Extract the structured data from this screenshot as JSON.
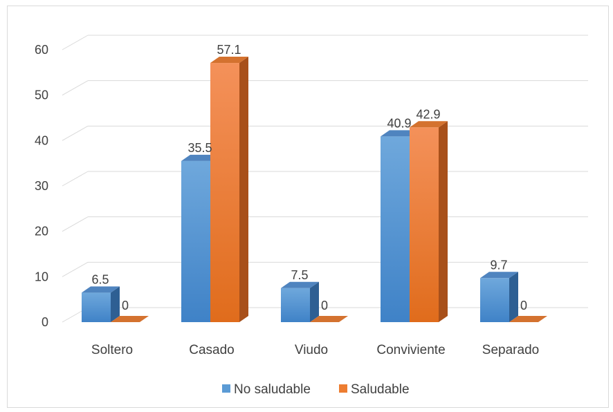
{
  "chart_data": {
    "type": "bar",
    "categories": [
      "Soltero",
      "Casado",
      "Viudo",
      "Conviviente",
      "Separado"
    ],
    "series": [
      {
        "name": "No saludable",
        "values": [
          6.5,
          35.5,
          7.5,
          40.9,
          9.7
        ],
        "color": "#5b9bd5"
      },
      {
        "name": "Saludable",
        "values": [
          0,
          57.1,
          0,
          42.9,
          0
        ],
        "color": "#ed7d31"
      }
    ],
    "data_labels": [
      [
        "6.5",
        "35.5",
        "7.5",
        "40.9",
        "9.7"
      ],
      [
        "0",
        "57.1",
        "0",
        "42.9",
        "0"
      ]
    ],
    "y_ticks": [
      "0",
      "10",
      "20",
      "30",
      "40",
      "50",
      "60"
    ],
    "ylim": [
      0,
      60
    ],
    "grid": true,
    "style": "3d-clustered-column",
    "legend_position": "bottom",
    "title": "",
    "xlabel": "",
    "ylabel": ""
  }
}
